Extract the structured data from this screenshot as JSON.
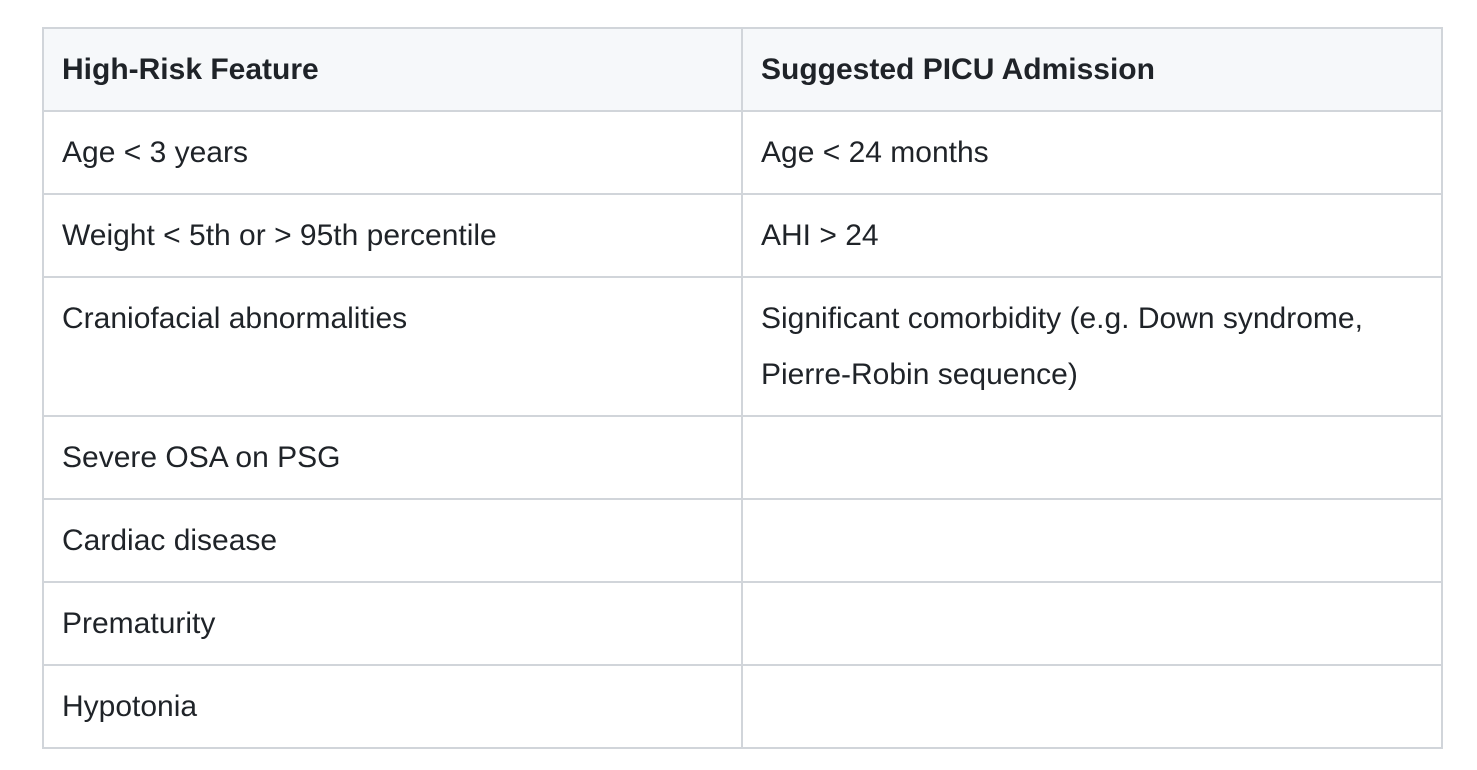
{
  "table": {
    "headers": [
      "High-Risk Feature",
      "Suggested PICU Admission"
    ],
    "rows": [
      [
        "Age < 3 years",
        "Age < 24 months"
      ],
      [
        "Weight < 5th or > 95th percentile",
        "AHI > 24"
      ],
      [
        "Craniofacial abnormalities",
        "Significant comorbidity (e.g. Down syndrome, Pierre-Robin sequence)"
      ],
      [
        "Severe OSA on PSG",
        ""
      ],
      [
        "Cardiac disease",
        ""
      ],
      [
        "Prematurity",
        ""
      ],
      [
        "Hypotonia",
        ""
      ]
    ]
  }
}
